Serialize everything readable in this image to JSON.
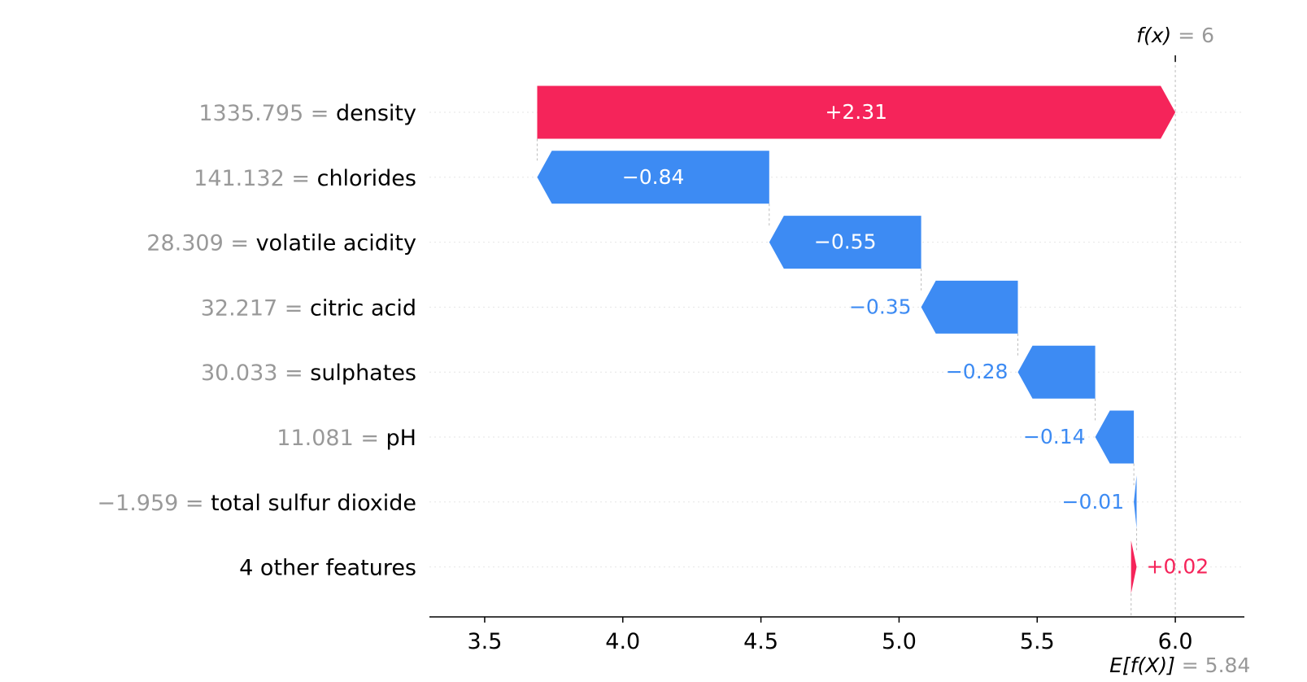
{
  "chart_data": {
    "type": "waterfall",
    "base_value": 5.84,
    "output_value": 6,
    "base_label": {
      "var": "E[f(X)]",
      "eq": " = ",
      "value": "5.84"
    },
    "output_label": {
      "var": "f(x)",
      "eq": " = ",
      "value": "6"
    },
    "xlim": [
      3.3,
      6.25
    ],
    "xticks": [
      3.5,
      4.0,
      4.5,
      5.0,
      5.5,
      6.0
    ],
    "xtick_labels": [
      "3.5",
      "4.0",
      "4.5",
      "5.0",
      "5.5",
      "6.0"
    ],
    "rows": [
      {
        "feature": "density",
        "value": "1335.795",
        "eq": "=",
        "shap": 2.31,
        "label": "+2.31"
      },
      {
        "feature": "chlorides",
        "value": "141.132",
        "eq": "=",
        "shap": -0.84,
        "label": "−0.84"
      },
      {
        "feature": "volatile acidity",
        "value": "28.309",
        "eq": "=",
        "shap": -0.55,
        "label": "−0.55"
      },
      {
        "feature": "citric acid",
        "value": "32.217",
        "eq": "=",
        "shap": -0.35,
        "label": "−0.35"
      },
      {
        "feature": "sulphates",
        "value": "30.033",
        "eq": "=",
        "shap": -0.28,
        "label": "−0.28"
      },
      {
        "feature": "pH",
        "value": "11.081",
        "eq": "=",
        "shap": -0.14,
        "label": "−0.14"
      },
      {
        "feature": "total sulfur dioxide",
        "value": "−1.959",
        "eq": "=",
        "shap": -0.01,
        "label": "−0.01"
      },
      {
        "feature": "4 other features",
        "value": "",
        "eq": "",
        "shap": 0.02,
        "label": "+0.02"
      }
    ],
    "colors": {
      "positive": "#f5245a",
      "negative": "#3d8bf3",
      "muted": "#999999"
    }
  }
}
